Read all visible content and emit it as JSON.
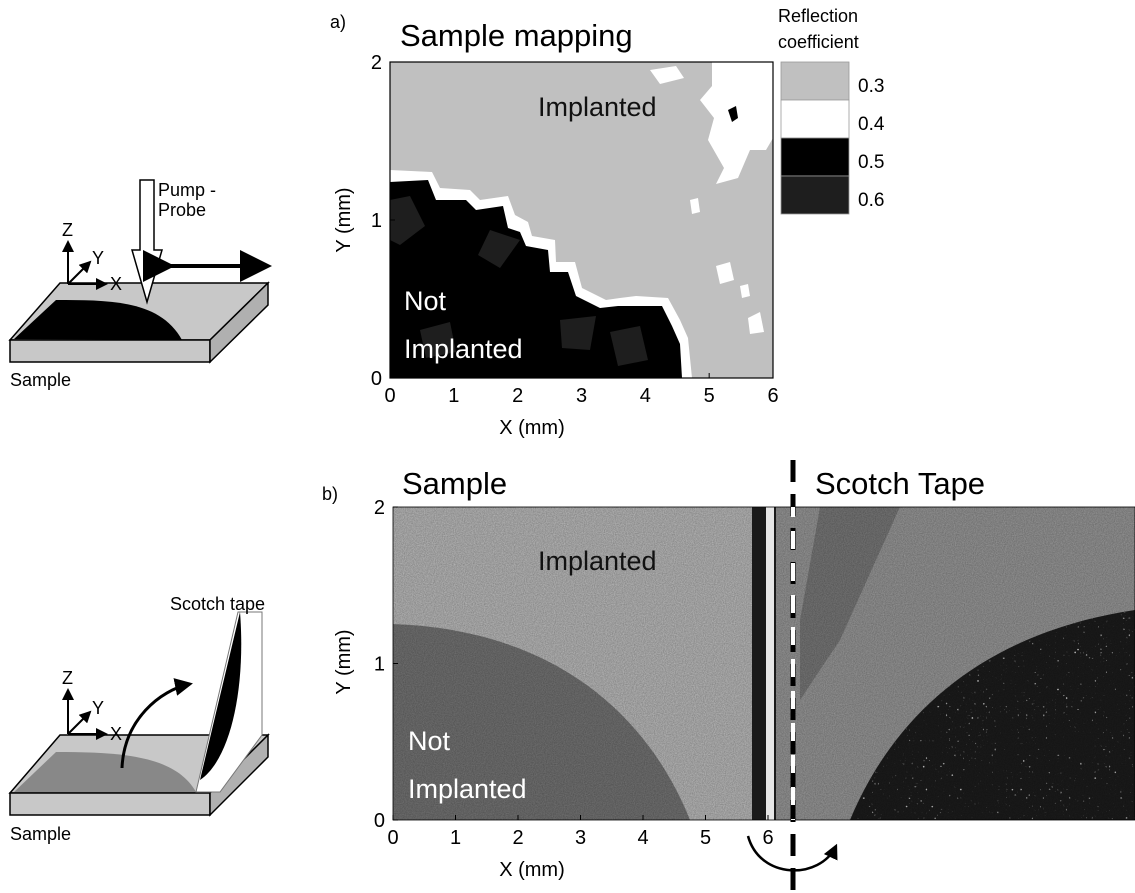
{
  "panel_a": {
    "label": "a)",
    "title": "Sample mapping",
    "xlabel": "X (mm)",
    "ylabel": "Y (mm)",
    "region_implanted": "Implanted",
    "region_not_line1": "Not",
    "region_not_line2": "Implanted",
    "legend": {
      "title_line1": "Reflection",
      "title_line2": "coefficient",
      "entries": [
        {
          "label": "0.3",
          "color": "#c0c0c0"
        },
        {
          "label": "0.4",
          "color": "#ffffff"
        },
        {
          "label": "0.5",
          "color": "#000000"
        },
        {
          "label": "0.6",
          "color": "#1e1e1e"
        }
      ]
    }
  },
  "panel_b": {
    "label": "b)",
    "title_left": "Sample",
    "title_right": "Scotch Tape",
    "xlabel": "X (mm)",
    "ylabel": "Y (mm)",
    "region_implanted": "Implanted",
    "region_not_line1": "Not",
    "region_not_line2": "Implanted"
  },
  "diagram_top": {
    "beam_line1": "Pump -",
    "beam_line2": "Probe",
    "axis_z": "Z",
    "axis_y": "Y",
    "axis_x": "X",
    "sample_label": "Sample"
  },
  "diagram_bottom": {
    "tape_label": "Scotch tape",
    "axis_z": "Z",
    "axis_y": "Y",
    "axis_x": "X",
    "sample_label": "Sample"
  },
  "chart_data": [
    {
      "type": "heatmap",
      "title": "Sample mapping",
      "xlabel": "X (mm)",
      "ylabel": "Y (mm)",
      "xlim": [
        0,
        6
      ],
      "ylim": [
        0,
        2
      ],
      "xticks": [
        "0",
        "1",
        "2",
        "3",
        "4",
        "5",
        "6"
      ],
      "yticks": [
        "0",
        "1",
        "2"
      ],
      "colorbar_title": "Reflection coefficient",
      "colorbar_levels": [
        0.3,
        0.4,
        0.5,
        0.6
      ]
    },
    {
      "type": "heatmap",
      "title": "Sample",
      "xlabel": "X (mm)",
      "ylabel": "Y (mm)",
      "xlim": [
        0,
        7.4
      ],
      "ylim": [
        0,
        2
      ],
      "xticks": [
        "0",
        "1",
        "2",
        "3",
        "4",
        "5",
        "6"
      ],
      "yticks": [
        "0",
        "1",
        "2"
      ]
    }
  ]
}
